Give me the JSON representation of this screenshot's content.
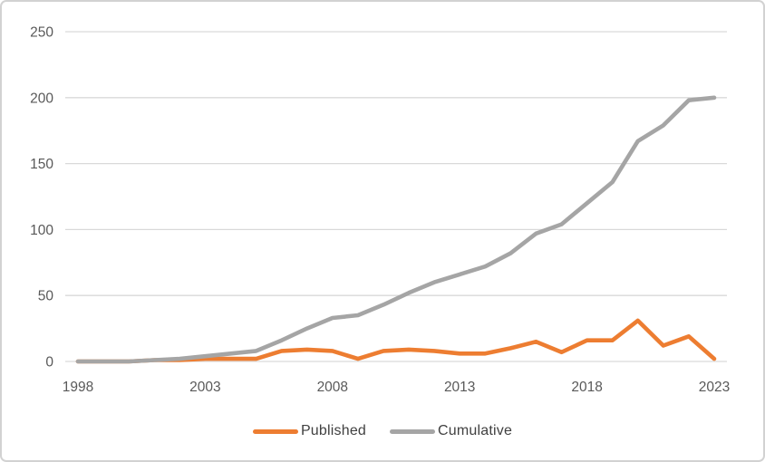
{
  "chart_data": {
    "type": "line",
    "x": [
      1998,
      1999,
      2000,
      2001,
      2002,
      2003,
      2004,
      2005,
      2006,
      2007,
      2008,
      2009,
      2010,
      2011,
      2012,
      2013,
      2014,
      2015,
      2016,
      2017,
      2018,
      2019,
      2020,
      2021,
      2022,
      2023
    ],
    "x_tick_labels": [
      "1998",
      "2003",
      "2008",
      "2013",
      "2018",
      "2023"
    ],
    "y_ticks": [
      0,
      50,
      100,
      150,
      200,
      250
    ],
    "ylim": [
      0,
      250
    ],
    "grid": "horizontal-only",
    "legend_position": "bottom-center",
    "title": "",
    "xlabel": "",
    "ylabel": "",
    "series": [
      {
        "name": "Published",
        "color": "#ED7D31",
        "values": [
          0,
          0,
          0,
          1,
          1,
          2,
          2,
          2,
          8,
          9,
          8,
          2,
          8,
          9,
          8,
          6,
          6,
          10,
          15,
          7,
          16,
          16,
          31,
          12,
          19,
          2
        ]
      },
      {
        "name": "Cumulative",
        "color": "#A5A5A5",
        "values": [
          0,
          0,
          0,
          1,
          2,
          4,
          6,
          8,
          16,
          25,
          33,
          35,
          43,
          52,
          60,
          66,
          72,
          82,
          97,
          104,
          120,
          136,
          167,
          179,
          198,
          200
        ]
      }
    ]
  },
  "colors": {
    "background": "#FFFFFF",
    "gridline": "#D9D9D9",
    "axis_text": "#595959",
    "legend_text": "#404040",
    "frame_border": "#D2D2D2"
  }
}
